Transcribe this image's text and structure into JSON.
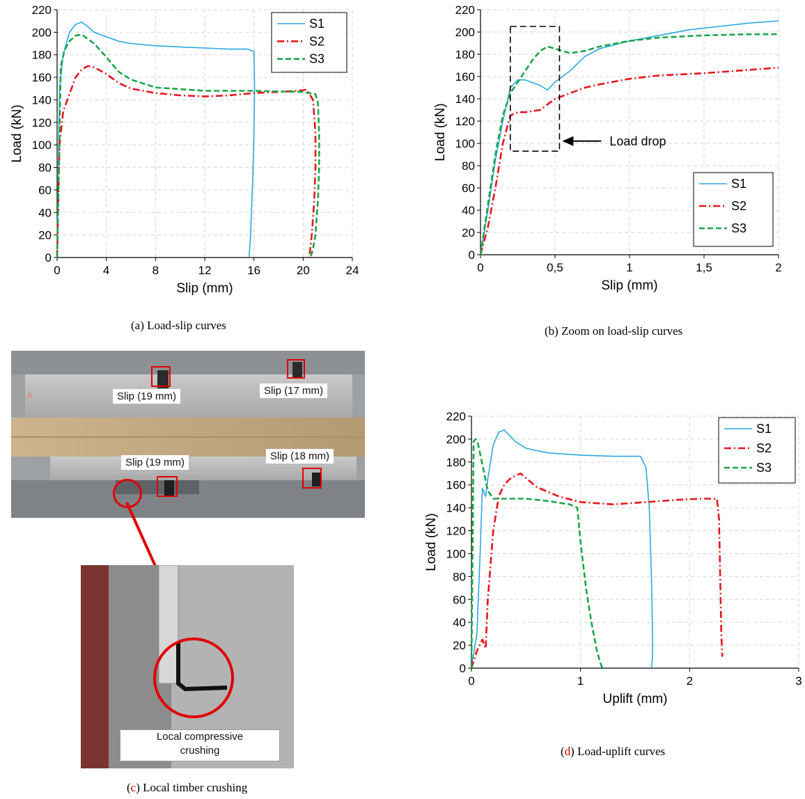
{
  "colors": {
    "s1": "#29a8e0",
    "s2": "#e8141c",
    "s3": "#1aa64a",
    "grid": "#d6d6d6",
    "marker": "#e00000"
  },
  "chart_data": [
    {
      "type": "line",
      "xlabel": "Slip (mm)",
      "ylabel": "Load (kN)",
      "xlim": [
        0,
        24
      ],
      "ylim": [
        0,
        220
      ],
      "xticks": [
        "0",
        "4",
        "8",
        "12",
        "16",
        "20",
        "24"
      ],
      "yticks": [
        "0",
        "20",
        "40",
        "60",
        "80",
        "100",
        "120",
        "140",
        "160",
        "180",
        "200",
        "220"
      ],
      "grid": true,
      "legend": "top-right",
      "series": [
        {
          "name": "S1",
          "x": [
            0,
            0.2,
            0.5,
            1,
            1.5,
            2,
            2.5,
            3,
            4,
            5,
            6,
            8,
            10,
            12,
            14,
            15.5,
            16,
            16.05,
            16,
            15.9,
            15.8,
            15.7,
            15.6
          ],
          "y": [
            0,
            150,
            180,
            200,
            207,
            209,
            205,
            200,
            196,
            192,
            190,
            188,
            187,
            186,
            185,
            185,
            183,
            150,
            110,
            70,
            40,
            15,
            0
          ]
        },
        {
          "name": "S2",
          "x": [
            0,
            0.2,
            0.5,
            1,
            1.5,
            2,
            2.5,
            3,
            4,
            5,
            6,
            8,
            10,
            12,
            14,
            16,
            18,
            19.5,
            20.3,
            20.8,
            21,
            21,
            20.9,
            20.7,
            20.5
          ],
          "y": [
            0,
            100,
            130,
            145,
            160,
            167,
            170,
            169,
            163,
            155,
            150,
            146,
            144,
            143,
            144,
            146,
            147,
            148,
            149,
            140,
            110,
            80,
            50,
            20,
            0
          ]
        },
        {
          "name": "S3",
          "x": [
            0,
            0.3,
            0.6,
            1,
            1.5,
            2,
            3,
            4,
            5,
            6,
            8,
            12,
            16,
            20,
            21,
            21.2,
            21.3,
            21.3,
            21.2,
            21,
            20.8,
            20.6
          ],
          "y": [
            0,
            170,
            184,
            192,
            197,
            198,
            190,
            178,
            165,
            158,
            151,
            148,
            148,
            147,
            145,
            138,
            110,
            80,
            50,
            20,
            8,
            0
          ]
        }
      ]
    },
    {
      "type": "line",
      "xlabel": "Slip (mm)",
      "ylabel": "Load (kN)",
      "xlim": [
        0,
        2
      ],
      "ylim": [
        0,
        220
      ],
      "xticks": [
        "0",
        "0,5",
        "1",
        "1,5",
        "2"
      ],
      "yticks": [
        "0",
        "20",
        "40",
        "60",
        "80",
        "100",
        "120",
        "140",
        "160",
        "180",
        "200",
        "220"
      ],
      "grid": true,
      "legend": "bottom-right",
      "annotation": "Load drop",
      "series": [
        {
          "name": "S1",
          "x": [
            0,
            0.05,
            0.1,
            0.15,
            0.2,
            0.25,
            0.3,
            0.4,
            0.45,
            0.5,
            0.6,
            0.7,
            0.8,
            1,
            1.2,
            1.4,
            1.6,
            1.8,
            2
          ],
          "y": [
            0,
            40,
            85,
            120,
            150,
            157,
            157,
            152,
            148,
            155,
            165,
            178,
            185,
            192,
            197,
            202,
            205,
            208,
            210
          ]
        },
        {
          "name": "S2",
          "x": [
            0,
            0.05,
            0.1,
            0.15,
            0.2,
            0.25,
            0.3,
            0.4,
            0.5,
            0.6,
            0.7,
            0.8,
            1,
            1.2,
            1.5,
            1.8,
            2
          ],
          "y": [
            0,
            25,
            60,
            100,
            125,
            128,
            128,
            130,
            140,
            145,
            150,
            153,
            158,
            161,
            163,
            166,
            168
          ]
        },
        {
          "name": "S3",
          "x": [
            0,
            0.05,
            0.1,
            0.15,
            0.2,
            0.25,
            0.3,
            0.35,
            0.4,
            0.45,
            0.5,
            0.6,
            0.7,
            0.8,
            1,
            1.2,
            1.5,
            1.8,
            2
          ],
          "y": [
            0,
            45,
            90,
            125,
            145,
            155,
            165,
            175,
            183,
            187,
            185,
            181,
            183,
            187,
            192,
            195,
            197,
            198,
            198
          ]
        }
      ]
    },
    {
      "type": "line",
      "xlabel": "Uplift (mm)",
      "ylabel": "Load (kN)",
      "xlim": [
        0,
        3
      ],
      "ylim": [
        0,
        220
      ],
      "xticks": [
        "0",
        "1",
        "2",
        "3"
      ],
      "yticks": [
        "0",
        "20",
        "40",
        "60",
        "80",
        "100",
        "120",
        "140",
        "160",
        "180",
        "200",
        "220"
      ],
      "grid": true,
      "legend": "top-right",
      "series": [
        {
          "name": "S1",
          "x": [
            0,
            0.05,
            0.08,
            0.1,
            0.13,
            0.15,
            0.2,
            0.25,
            0.3,
            0.4,
            0.5,
            0.7,
            1,
            1.3,
            1.55,
            1.6,
            1.63,
            1.65,
            1.66,
            1.66,
            1.65
          ],
          "y": [
            0,
            30,
            100,
            157,
            150,
            165,
            195,
            206,
            208,
            198,
            192,
            188,
            186,
            185,
            185,
            175,
            140,
            80,
            30,
            10,
            0
          ]
        },
        {
          "name": "S2",
          "x": [
            0,
            0.05,
            0.1,
            0.13,
            0.15,
            0.2,
            0.25,
            0.3,
            0.35,
            0.4,
            0.45,
            0.5,
            0.6,
            0.8,
            1,
            1.3,
            1.6,
            1.9,
            2.1,
            2.25,
            2.27,
            2.28,
            2.29,
            2.3
          ],
          "y": [
            0,
            15,
            25,
            17,
            60,
            120,
            150,
            160,
            165,
            168,
            170,
            166,
            158,
            150,
            145,
            143,
            145,
            147,
            148,
            148,
            130,
            80,
            30,
            10
          ]
        },
        {
          "name": "S3",
          "x": [
            0,
            0.02,
            0.04,
            0.06,
            0.1,
            0.15,
            0.2,
            0.3,
            0.5,
            0.7,
            0.9,
            0.97,
            1,
            1.05,
            1.1,
            1.15,
            1.18,
            1.2
          ],
          "y": [
            0,
            198,
            200,
            196,
            178,
            155,
            148,
            148,
            148,
            146,
            143,
            140,
            110,
            70,
            40,
            15,
            5,
            0
          ]
        }
      ]
    }
  ],
  "captions": {
    "a": "(a) Load-slip curves",
    "b": "(b) Zoom on load-slip curves",
    "c_letter": "c",
    "c_open": "(",
    "c_rest": ") Local timber crushing",
    "d_letter": "d",
    "d_open": "(",
    "d_rest": ") Load-uplift curves"
  },
  "photo_labels": {
    "slip_tl": "Slip (19 mm)",
    "slip_tr": "Slip (17 mm)",
    "slip_bl": "Slip (19 mm)",
    "slip_br": "Slip (18 mm)",
    "crushing_1": "Local compressive",
    "crushing_2": "crushing"
  }
}
